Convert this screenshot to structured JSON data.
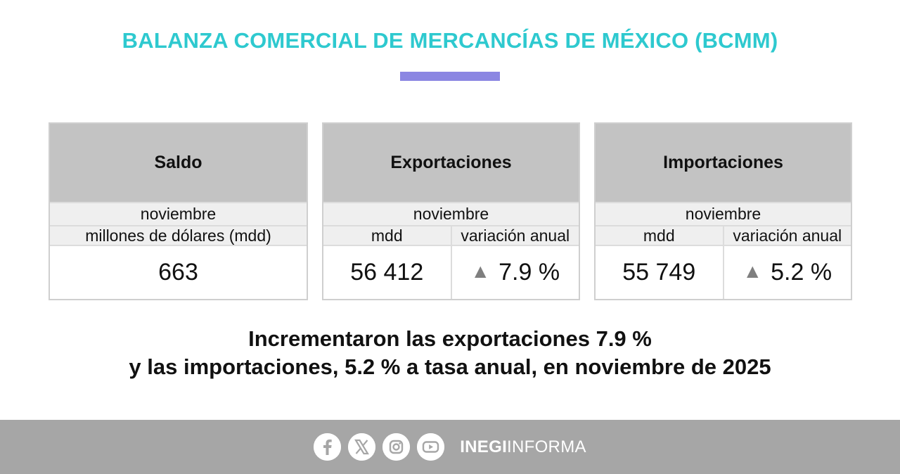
{
  "title": "BALANZA COMERCIAL DE MERCANCÍAS DE MÉXICO (BCMM)",
  "colors": {
    "title": "#2ec9cf",
    "accent_bar": "#8b86e2",
    "card_header": "#c3c3c3",
    "footer": "#a6a6a6",
    "triangle": "#7f7f7f"
  },
  "cards": {
    "saldo": {
      "heading": "Saldo",
      "month": "noviembre",
      "unit": "millones de dólares (mdd)",
      "value": "663"
    },
    "exportaciones": {
      "heading": "Exportaciones",
      "month": "noviembre",
      "col_unit": "mdd",
      "col_change": "variación anual",
      "value": "56 412",
      "change": "7.9 %",
      "change_icon": "triangle-up-icon"
    },
    "importaciones": {
      "heading": "Importaciones",
      "month": "noviembre",
      "col_unit": "mdd",
      "col_change": "variación anual",
      "value": "55 749",
      "change": "5.2 %",
      "change_icon": "triangle-up-icon"
    }
  },
  "headline": {
    "line1": "Incrementaron las exportaciones 7.9 %",
    "line2": "y las importaciones, 5.2 % a tasa anual, en noviembre de 2025"
  },
  "footer": {
    "icons": [
      "facebook-icon",
      "x-icon",
      "instagram-icon",
      "youtube-icon"
    ],
    "brand_bold": "INEGI",
    "brand_light": "INFORMA"
  }
}
